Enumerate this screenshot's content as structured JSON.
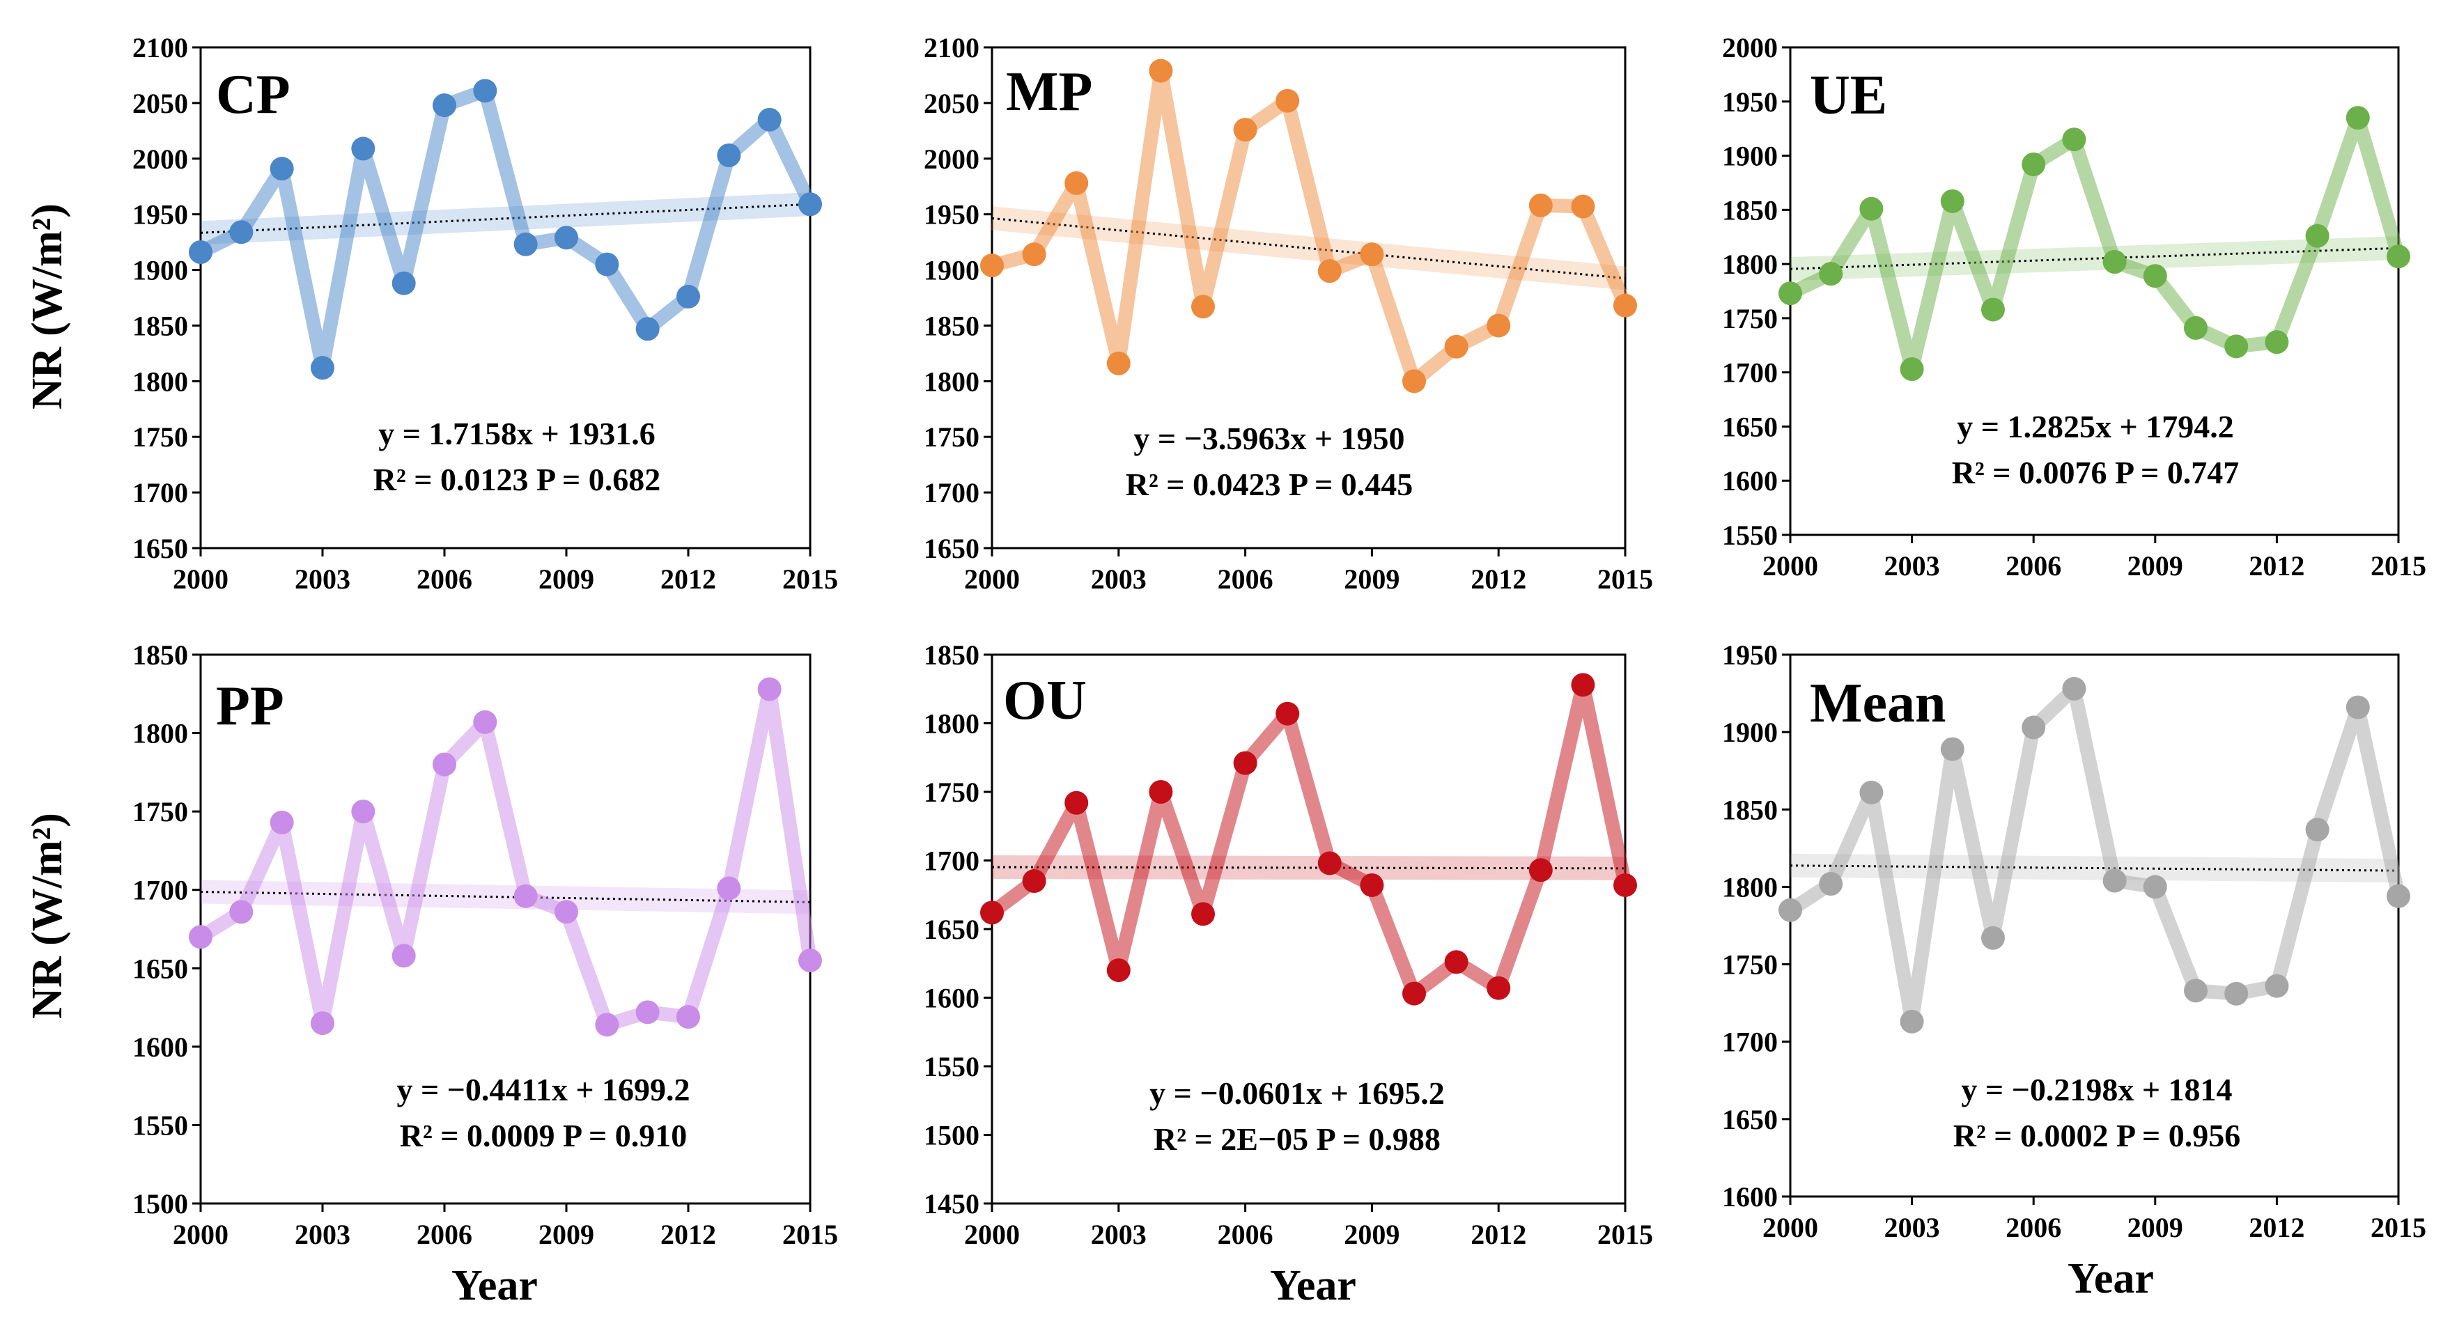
{
  "figure": {
    "y_axis_title": "NR (W/m²)",
    "x_axis_title": "Year"
  },
  "chart_data": [
    {
      "type": "line",
      "panel": "CP",
      "color": "#4a86c8",
      "x": [
        2000,
        2001,
        2002,
        2003,
        2004,
        2005,
        2006,
        2007,
        2008,
        2009,
        2010,
        2011,
        2012,
        2013,
        2014,
        2015
      ],
      "values": [
        1916,
        1934,
        1991,
        1812,
        2009,
        1888,
        2048,
        2061,
        1923,
        1929,
        1905,
        1847,
        1876,
        2003,
        2035,
        1959
      ],
      "xticks": [
        "2000",
        "2003",
        "2006",
        "2009",
        "2012",
        "2015"
      ],
      "yticks": [
        "1650",
        "1700",
        "1750",
        "1800",
        "1850",
        "1900",
        "1950",
        "2000",
        "2050",
        "2100"
      ],
      "ylim": [
        1650,
        2100
      ],
      "xlim": [
        2000,
        2015
      ],
      "trend": {
        "slope": 1.7158,
        "intercept": 1931.6
      },
      "equation": "y = 1.7158x + 1931.6",
      "stats": "R² = 0.0123 P = 0.682"
    },
    {
      "type": "line",
      "panel": "MP",
      "color": "#ee8a3c",
      "x": [
        2000,
        2001,
        2002,
        2003,
        2004,
        2005,
        2006,
        2007,
        2008,
        2009,
        2010,
        2011,
        2012,
        2013,
        2014,
        2015
      ],
      "values": [
        1904,
        1914,
        1978,
        1816,
        2079,
        1867,
        2026,
        2052,
        1899,
        1914,
        1800,
        1831,
        1850,
        1958,
        1957,
        1868
      ],
      "xticks": [
        "2000",
        "2003",
        "2006",
        "2009",
        "2012",
        "2015"
      ],
      "yticks": [
        "1650",
        "1700",
        "1750",
        "1800",
        "1850",
        "1900",
        "1950",
        "2000",
        "2050",
        "2100"
      ],
      "ylim": [
        1650,
        2100
      ],
      "xlim": [
        2000,
        2015
      ],
      "trend": {
        "slope": -3.5963,
        "intercept": 1950
      },
      "equation": "y = −3.5963x + 1950",
      "stats": "R² = 0.0423 P = 0.445"
    },
    {
      "type": "line",
      "panel": "UE",
      "color": "#6cb04a",
      "x": [
        2000,
        2001,
        2002,
        2003,
        2004,
        2005,
        2006,
        2007,
        2008,
        2009,
        2010,
        2011,
        2012,
        2013,
        2014,
        2015
      ],
      "values": [
        1773,
        1791,
        1851,
        1703,
        1858,
        1758,
        1892,
        1915,
        1802,
        1789,
        1741,
        1724,
        1728,
        1826,
        1935,
        1807
      ],
      "xticks": [
        "2000",
        "2003",
        "2006",
        "2009",
        "2012",
        "2015"
      ],
      "yticks": [
        "1550",
        "1600",
        "1650",
        "1700",
        "1750",
        "1800",
        "1850",
        "1900",
        "1950",
        "2000"
      ],
      "ylim": [
        1550,
        2000
      ],
      "xlim": [
        2000,
        2015
      ],
      "trend": {
        "slope": 1.2825,
        "intercept": 1794.2
      },
      "equation": "y = 1.2825x + 1794.2",
      "stats": "R² = 0.0076 P = 0.747"
    },
    {
      "type": "line",
      "panel": "PP",
      "color": "#c98ce8",
      "x": [
        2000,
        2001,
        2002,
        2003,
        2004,
        2005,
        2006,
        2007,
        2008,
        2009,
        2010,
        2011,
        2012,
        2013,
        2014,
        2015
      ],
      "values": [
        1670,
        1686,
        1743,
        1615,
        1750,
        1658,
        1780,
        1807,
        1696,
        1686,
        1614,
        1622,
        1619,
        1701,
        1828,
        1655
      ],
      "xticks": [
        "2000",
        "2003",
        "2006",
        "2009",
        "2012",
        "2015"
      ],
      "yticks": [
        "1500",
        "1550",
        "1600",
        "1650",
        "1700",
        "1750",
        "1800",
        "1850"
      ],
      "ylim": [
        1500,
        1850
      ],
      "xlim": [
        2000,
        2015
      ],
      "trend": {
        "slope": -0.4411,
        "intercept": 1699.2
      },
      "equation": "y = −0.4411x + 1699.2",
      "stats": "R² = 0.0009 P = 0.910"
    },
    {
      "type": "line",
      "panel": "OU",
      "color": "#c40f18",
      "x": [
        2000,
        2001,
        2002,
        2003,
        2004,
        2005,
        2006,
        2007,
        2008,
        2009,
        2010,
        2011,
        2012,
        2013,
        2014,
        2015
      ],
      "values": [
        1662,
        1685,
        1742,
        1620,
        1750,
        1661,
        1771,
        1807,
        1698,
        1682,
        1603,
        1626,
        1607,
        1693,
        1828,
        1682
      ],
      "xticks": [
        "2000",
        "2003",
        "2006",
        "2009",
        "2012",
        "2015"
      ],
      "yticks": [
        "1450",
        "1500",
        "1550",
        "1600",
        "1650",
        "1700",
        "1750",
        "1800",
        "1850"
      ],
      "ylim": [
        1450,
        1850
      ],
      "xlim": [
        2000,
        2015
      ],
      "trend": {
        "slope": -0.0601,
        "intercept": 1695.2
      },
      "equation": "y = −0.0601x + 1695.2",
      "stats": "R² = 2E−05 P = 0.988"
    },
    {
      "type": "line",
      "panel": "Mean",
      "color": "#a6a6a6",
      "x": [
        2000,
        2001,
        2002,
        2003,
        2004,
        2005,
        2006,
        2007,
        2008,
        2009,
        2010,
        2011,
        2012,
        2013,
        2014,
        2015
      ],
      "values": [
        1785,
        1802,
        1861,
        1713,
        1889,
        1767,
        1903,
        1928,
        1804,
        1800,
        1733,
        1731,
        1736,
        1837,
        1916,
        1794
      ],
      "xticks": [
        "2000",
        "2003",
        "2006",
        "2009",
        "2012",
        "2015"
      ],
      "yticks": [
        "1600",
        "1650",
        "1700",
        "1750",
        "1800",
        "1850",
        "1900",
        "1950"
      ],
      "ylim": [
        1600,
        1950
      ],
      "xlim": [
        2000,
        2015
      ],
      "trend": {
        "slope": -0.2198,
        "intercept": 1814
      },
      "equation": "y = −0.2198x + 1814",
      "stats": "R² = 0.0002 P = 0.956"
    }
  ]
}
